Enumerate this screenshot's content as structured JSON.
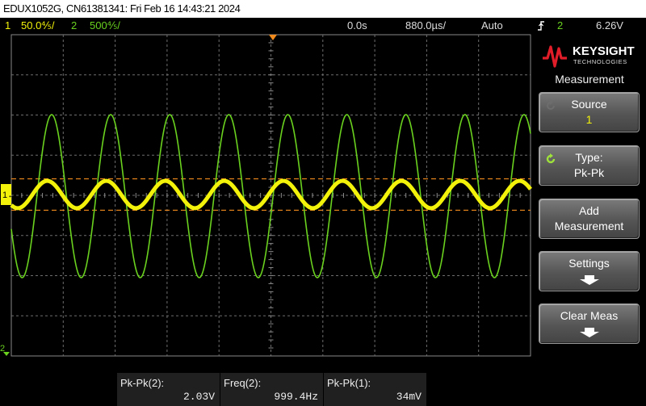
{
  "title_bar": {
    "text": "EDUX1052G, CN61381341: Fri Feb 16 14:43:21 2024"
  },
  "status_bar": {
    "ch1": {
      "num": "1",
      "scale": "50.0⅘/"
    },
    "ch2": {
      "num": "2",
      "scale": "500⅘/"
    },
    "delay": "0.0s",
    "timebase": "880.0µs/",
    "trigger_mode": "Auto",
    "trigger_source": "2",
    "trigger_level": "6.26V"
  },
  "colors": {
    "ch1": "#f2f20a",
    "ch2": "#6ad21f",
    "cursor": "#f08a1c",
    "grid": "#6e6e6e"
  },
  "graticule": {
    "ch1_marker": "1↔",
    "ch2_marker": "2"
  },
  "chart_data": {
    "type": "line",
    "title": "",
    "x_unit": "s",
    "time_per_division": "880.0µs",
    "series": [
      {
        "name": "1",
        "channel": 1,
        "color": "#f2f20a",
        "frequency_hz": 999.4,
        "peak_to_peak_v": 0.034,
        "volts_per_div": 0.05
      },
      {
        "name": "2",
        "channel": 2,
        "color": "#6ad21f",
        "frequency_hz": 999.4,
        "peak_to_peak_v": 2.03,
        "volts_per_div": 0.5
      }
    ],
    "grid": true,
    "cursors": "horizontal pair around channel 1"
  },
  "side_panel": {
    "brand": "KEYSIGHT",
    "brand_sub": "TECHNOLOGIES",
    "menu_title": "Measurement",
    "softkeys": [
      {
        "label": "Source",
        "value": "1"
      },
      {
        "label": "Type:",
        "value": "Pk-Pk"
      },
      {
        "label": "Add",
        "value": "Measurement"
      },
      {
        "label": "Settings",
        "value": ""
      },
      {
        "label": "Clear Meas",
        "value": ""
      }
    ]
  },
  "measurements": [
    {
      "label": "Pk-Pk(2):",
      "value": "2.03V"
    },
    {
      "label": "Freq(2):",
      "value": "999.4Hz"
    },
    {
      "label": "Pk-Pk(1):",
      "value": "34mV"
    }
  ]
}
